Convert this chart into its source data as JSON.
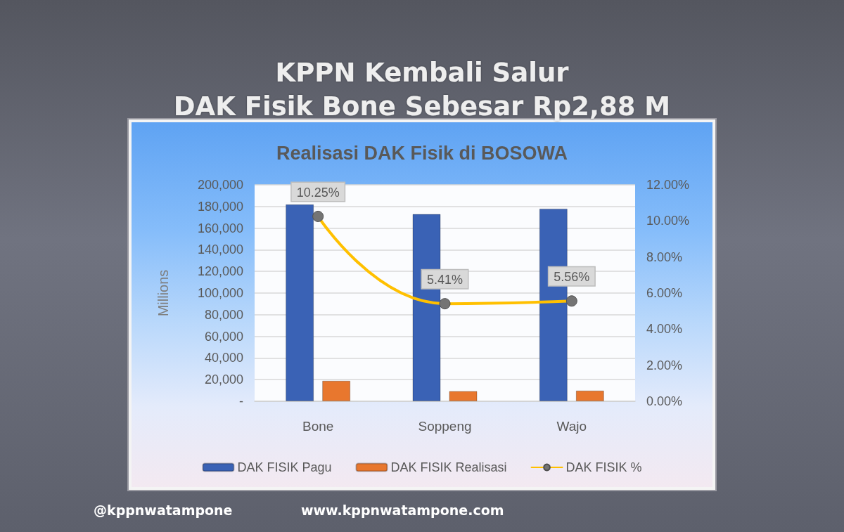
{
  "chart_data": {
    "type": "bar",
    "title": "KPPN Kembali Salur\nDAK Fisik Bone Sebesar Rp2,88 M",
    "subtitle": "Realisasi DAK Fisik di BOSOWA",
    "ylabel": "Millions",
    "categories": [
      "Bone",
      "Soppeng",
      "Wajo"
    ],
    "series": [
      {
        "name": "DAK FISIK Pagu",
        "color": "#3a62b5",
        "values": [
          182000,
          173000,
          178000
        ]
      },
      {
        "name": "DAK FISIK Realisasi",
        "color": "#e8772e",
        "values": [
          19000,
          9400,
          9900
        ]
      },
      {
        "name": "DAK FISIK %",
        "type": "line",
        "axis": "y2",
        "color": "#ffc000",
        "values": [
          10.25,
          5.41,
          5.56
        ],
        "value_labels": [
          "10.25%",
          "5.41%",
          "5.56%"
        ]
      }
    ],
    "ylim": [
      0,
      200000
    ],
    "yticks": [
      {
        "value": 0,
        "label": "-"
      },
      {
        "value": 20000,
        "label": "20,000"
      },
      {
        "value": 40000,
        "label": "40,000"
      },
      {
        "value": 60000,
        "label": "60,000"
      },
      {
        "value": 80000,
        "label": "80,000"
      },
      {
        "value": 100000,
        "label": "100,000"
      },
      {
        "value": 120000,
        "label": "120,000"
      },
      {
        "value": 140000,
        "label": "140,000"
      },
      {
        "value": 160000,
        "label": "160,000"
      },
      {
        "value": 180000,
        "label": "180,000"
      },
      {
        "value": 200000,
        "label": "200,000"
      }
    ],
    "y2lim": [
      0,
      12
    ],
    "y2ticks": [
      {
        "value": 0,
        "label": "0.00%"
      },
      {
        "value": 2,
        "label": "2.00%"
      },
      {
        "value": 4,
        "label": "4.00%"
      },
      {
        "value": 6,
        "label": "6.00%"
      },
      {
        "value": 8,
        "label": "8.00%"
      },
      {
        "value": 10,
        "label": "10.00%"
      },
      {
        "value": 12,
        "label": "12.00%"
      }
    ],
    "grid": "y",
    "legend": "bottom",
    "marker": "circle",
    "line_style": "solid",
    "annotations": [
      "@kppnwatampone",
      "www.kppnwatampone.com"
    ]
  }
}
